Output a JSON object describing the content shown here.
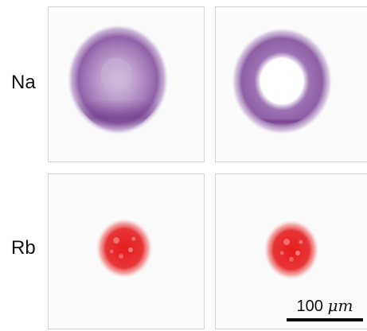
{
  "rows": [
    {
      "label": "Na",
      "color": "#7a3f96"
    },
    {
      "label": "Rb",
      "color": "#e52020"
    }
  ],
  "scale_bar": {
    "value": "100",
    "unit": "μm"
  }
}
